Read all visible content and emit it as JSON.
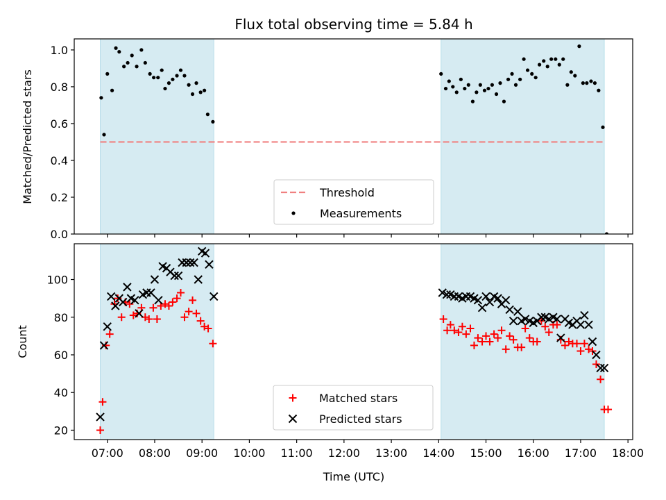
{
  "chart_data": [
    {
      "type": "scatter",
      "title": "Flux total observing time = 5.84 h",
      "ylabel": "Matched/Predicted stars",
      "xlabel": "",
      "xlim": [
        6.3,
        18.1
      ],
      "ylim": [
        0,
        1.06
      ],
      "yticks": [
        0.0,
        0.2,
        0.4,
        0.6,
        0.8,
        1.0
      ],
      "ytick_labels": [
        "0.0",
        "0.2",
        "0.4",
        "0.6",
        "0.8",
        "1.0"
      ],
      "shaded_spans": [
        [
          6.85,
          9.25
        ],
        [
          14.05,
          17.5
        ]
      ],
      "threshold": {
        "name": "Threshold",
        "value": 0.5,
        "x_range": [
          6.85,
          17.5
        ],
        "color": "#f08080",
        "style": "dashed"
      },
      "legend": {
        "position": "lower center",
        "entries": [
          "Threshold",
          "Measurements"
        ]
      },
      "series": [
        {
          "name": "Measurements",
          "marker": "dot",
          "color": "#000000",
          "x": [
            6.87,
            6.93,
            7.0,
            7.1,
            7.18,
            7.25,
            7.35,
            7.43,
            7.52,
            7.62,
            7.72,
            7.8,
            7.9,
            7.98,
            8.07,
            8.15,
            8.22,
            8.3,
            8.38,
            8.47,
            8.55,
            8.63,
            8.72,
            8.8,
            8.88,
            8.97,
            9.05,
            9.12,
            9.23,
            14.05,
            14.15,
            14.22,
            14.3,
            14.38,
            14.47,
            14.55,
            14.63,
            14.72,
            14.8,
            14.88,
            14.97,
            15.05,
            15.13,
            15.22,
            15.3,
            15.38,
            15.47,
            15.55,
            15.63,
            15.72,
            15.8,
            15.88,
            15.97,
            16.05,
            16.13,
            16.22,
            16.3,
            16.38,
            16.47,
            16.55,
            16.63,
            16.72,
            16.8,
            16.88,
            16.97,
            17.05,
            17.13,
            17.22,
            17.3,
            17.38,
            17.47,
            17.55
          ],
          "y": [
            0.74,
            0.54,
            0.87,
            0.78,
            1.01,
            0.99,
            0.91,
            0.93,
            0.97,
            0.91,
            1.0,
            0.93,
            0.87,
            0.85,
            0.85,
            0.89,
            0.79,
            0.82,
            0.84,
            0.86,
            0.89,
            0.86,
            0.81,
            0.76,
            0.82,
            0.77,
            0.78,
            0.65,
            0.61,
            0.87,
            0.79,
            0.83,
            0.8,
            0.77,
            0.84,
            0.79,
            0.81,
            0.72,
            0.77,
            0.81,
            0.78,
            0.79,
            0.81,
            0.76,
            0.82,
            0.72,
            0.84,
            0.87,
            0.81,
            0.84,
            0.95,
            0.89,
            0.87,
            0.85,
            0.92,
            0.94,
            0.91,
            0.95,
            0.95,
            0.92,
            0.95,
            0.81,
            0.88,
            0.86,
            1.02,
            0.82,
            0.82,
            0.83,
            0.82,
            0.78,
            0.58,
            0.0
          ]
        }
      ]
    },
    {
      "type": "scatter",
      "title": "",
      "ylabel": "Count",
      "xlabel": "Time (UTC)",
      "xlim": [
        6.3,
        18.1
      ],
      "ylim": [
        15,
        119
      ],
      "yticks": [
        20,
        40,
        60,
        80,
        100
      ],
      "ytick_labels": [
        "20",
        "40",
        "60",
        "80",
        "100"
      ],
      "xticks": [
        7,
        8,
        9,
        10,
        11,
        12,
        13,
        14,
        15,
        16,
        17,
        18
      ],
      "xtick_labels": [
        "07:00",
        "08:00",
        "09:00",
        "10:00",
        "11:00",
        "12:00",
        "13:00",
        "14:00",
        "15:00",
        "16:00",
        "17:00",
        "18:00"
      ],
      "shaded_spans": [
        [
          6.85,
          9.25
        ],
        [
          14.05,
          17.5
        ]
      ],
      "legend": {
        "position": "lower center",
        "entries": [
          "Matched stars",
          "Predicted stars"
        ]
      },
      "series": [
        {
          "name": "Matched stars",
          "marker": "plus",
          "color": "#ff0000",
          "x": [
            6.85,
            6.9,
            6.97,
            7.05,
            7.15,
            7.22,
            7.3,
            7.38,
            7.47,
            7.55,
            7.63,
            7.72,
            7.8,
            7.88,
            7.97,
            8.05,
            8.13,
            8.22,
            8.3,
            8.38,
            8.47,
            8.55,
            8.63,
            8.72,
            8.8,
            8.88,
            8.97,
            9.05,
            9.13,
            9.23,
            14.1,
            14.18,
            14.25,
            14.33,
            14.42,
            14.5,
            14.58,
            14.67,
            14.75,
            14.83,
            14.92,
            15.0,
            15.08,
            15.17,
            15.25,
            15.33,
            15.42,
            15.5,
            15.58,
            15.67,
            15.75,
            15.83,
            15.92,
            16.0,
            16.08,
            16.17,
            16.25,
            16.33,
            16.42,
            16.5,
            16.58,
            16.67,
            16.75,
            16.83,
            16.92,
            17.0,
            17.08,
            17.17,
            17.25,
            17.33,
            17.42,
            17.5,
            17.58
          ],
          "y": [
            20,
            35,
            65,
            71,
            87,
            90,
            80,
            88,
            87,
            81,
            82,
            85,
            80,
            79,
            85,
            79,
            86,
            87,
            86,
            88,
            90,
            93,
            80,
            83,
            89,
            82,
            78,
            75,
            74,
            66,
            79,
            73,
            76,
            73,
            72,
            75,
            71,
            74,
            65,
            69,
            67,
            70,
            67,
            71,
            69,
            73,
            63,
            70,
            68,
            64,
            64,
            74,
            69,
            67,
            67,
            78,
            75,
            72,
            76,
            76,
            68,
            65,
            67,
            66,
            66,
            62,
            66,
            63,
            62,
            55,
            47,
            31,
            31
          ]
        },
        {
          "name": "Predicted stars",
          "marker": "x",
          "color": "#000000",
          "x": [
            6.85,
            6.93,
            7.0,
            7.08,
            7.17,
            7.25,
            7.33,
            7.42,
            7.5,
            7.58,
            7.67,
            7.75,
            7.83,
            7.92,
            8.0,
            8.08,
            8.17,
            8.25,
            8.33,
            8.42,
            8.5,
            8.58,
            8.67,
            8.75,
            8.83,
            8.92,
            9.0,
            9.07,
            9.15,
            9.25,
            14.08,
            14.17,
            14.25,
            14.33,
            14.42,
            14.5,
            14.58,
            14.67,
            14.75,
            14.83,
            14.92,
            15.0,
            15.08,
            15.17,
            15.25,
            15.33,
            15.42,
            15.5,
            15.58,
            15.67,
            15.75,
            15.83,
            15.92,
            16.0,
            16.08,
            16.17,
            16.25,
            16.33,
            16.42,
            16.5,
            16.58,
            16.67,
            16.75,
            16.83,
            16.92,
            17.0,
            17.08,
            17.17,
            17.25,
            17.33,
            17.42,
            17.5
          ],
          "y": [
            27,
            65,
            75,
            91,
            86,
            90,
            88,
            96,
            90,
            89,
            82,
            92,
            93,
            93,
            100,
            89,
            107,
            106,
            104,
            102,
            102,
            109,
            109,
            109,
            109,
            100,
            115,
            114,
            108,
            91,
            93,
            92,
            92,
            91,
            91,
            90,
            91,
            91,
            90,
            89,
            85,
            91,
            88,
            91,
            90,
            87,
            89,
            84,
            78,
            83,
            78,
            79,
            78,
            77,
            78,
            80,
            80,
            79,
            80,
            79,
            69,
            79,
            77,
            76,
            78,
            76,
            81,
            76,
            67,
            60,
            53,
            53
          ]
        }
      ]
    }
  ]
}
